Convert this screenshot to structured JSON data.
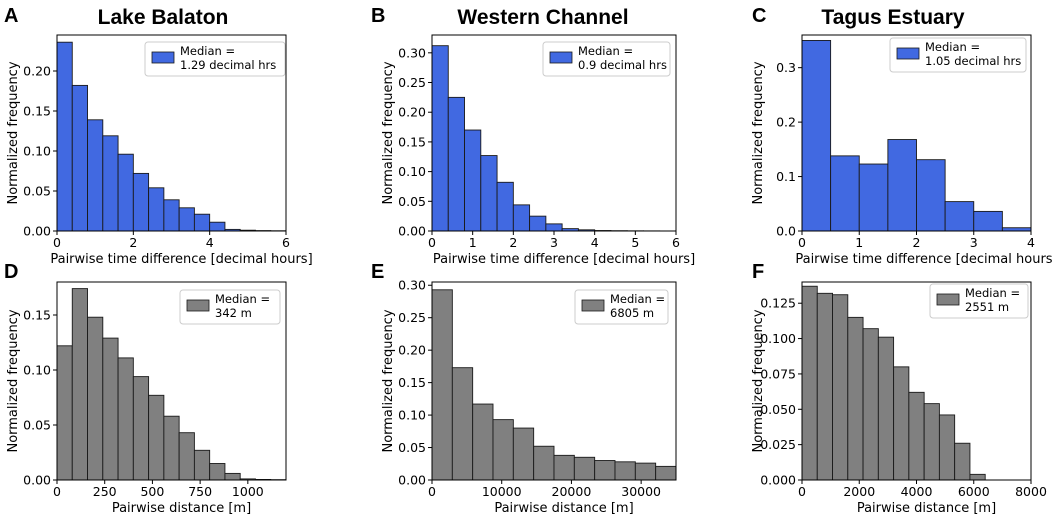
{
  "site_titles": [
    "Lake Balaton",
    "Western Channel",
    "Tagus Estuary"
  ],
  "colors": {
    "time_bar": "#4169e1",
    "distance_bar": "#808080",
    "edge": "#1a1a1a",
    "axis": "#000000"
  },
  "chart_data": [
    {
      "panel": "A",
      "type": "histogram",
      "site": "Lake Balaton",
      "xlabel": "Pairwise time difference [decimal hours]",
      "ylabel": "Normalized frequency",
      "xlim": [
        0,
        6
      ],
      "ylim": [
        0,
        0.245
      ],
      "xticks": [
        0,
        2,
        4,
        6
      ],
      "xtick_labels": [
        "0",
        "2",
        "4",
        "6"
      ],
      "yticks": [
        0,
        0.05,
        0.1,
        0.15,
        0.2
      ],
      "ytick_labels": [
        "0.00",
        "0.05",
        "0.10",
        "0.15",
        "0.20"
      ],
      "bin_edges": [
        0,
        0.4,
        0.8,
        1.2,
        1.6,
        2.0,
        2.4,
        2.8,
        3.2,
        3.6,
        4.0,
        4.4,
        4.8,
        5.2,
        5.6,
        6.0
      ],
      "values": [
        0.236,
        0.182,
        0.139,
        0.119,
        0.096,
        0.072,
        0.054,
        0.039,
        0.029,
        0.021,
        0.011,
        0.002,
        0.001,
        0.0005,
        0.0003
      ],
      "color": "time",
      "legend": {
        "line1": "Median =",
        "line2": "1.29 decimal hrs"
      }
    },
    {
      "panel": "B",
      "type": "histogram",
      "site": "Western Channel",
      "xlabel": "Pairwise time difference [decimal hours]",
      "ylabel": "Normalized frequency",
      "xlim": [
        0,
        6
      ],
      "ylim": [
        0,
        0.33
      ],
      "xticks": [
        0,
        1,
        2,
        3,
        4,
        5,
        6
      ],
      "xtick_labels": [
        "0",
        "1",
        "2",
        "3",
        "4",
        "5",
        "6"
      ],
      "yticks": [
        0,
        0.05,
        0.1,
        0.15,
        0.2,
        0.25,
        0.3
      ],
      "ytick_labels": [
        "0.00",
        "0.05",
        "0.10",
        "0.15",
        "0.20",
        "0.25",
        "0.30"
      ],
      "bin_edges": [
        0,
        0.4,
        0.8,
        1.2,
        1.6,
        2.0,
        2.4,
        2.8,
        3.2,
        3.6,
        4.0,
        4.4,
        4.8,
        5.2,
        5.6,
        6.0
      ],
      "values": [
        0.312,
        0.225,
        0.17,
        0.127,
        0.082,
        0.044,
        0.025,
        0.012,
        0.004,
        0.002,
        0.0008,
        0.0005,
        0.0003,
        0.0002,
        0.0001
      ],
      "color": "time",
      "legend": {
        "line1": "Median =",
        "line2": "0.9 decimal hrs"
      }
    },
    {
      "panel": "C",
      "type": "histogram",
      "site": "Tagus Estuary",
      "xlabel": "Pairwise time difference [decimal hours]",
      "ylabel": "Normalized frequency",
      "xlim": [
        0,
        4
      ],
      "ylim": [
        0,
        0.36
      ],
      "xticks": [
        0,
        1,
        2,
        3,
        4
      ],
      "xtick_labels": [
        "0",
        "1",
        "2",
        "3",
        "4"
      ],
      "yticks": [
        0,
        0.1,
        0.2,
        0.3
      ],
      "ytick_labels": [
        "0.0",
        "0.1",
        "0.2",
        "0.3"
      ],
      "bin_edges": [
        0,
        0.5,
        1.0,
        1.5,
        2.0,
        2.5,
        3.0,
        3.5,
        4.0
      ],
      "values": [
        0.35,
        0.138,
        0.123,
        0.168,
        0.131,
        0.054,
        0.036,
        0.006
      ],
      "color": "time",
      "legend": {
        "line1": "Median =",
        "line2": "1.05 decimal hrs"
      }
    },
    {
      "panel": "D",
      "type": "histogram",
      "xlabel": "Pairwise distance [m]",
      "ylabel": "Normalized frequency",
      "xlim": [
        0,
        1200
      ],
      "ylim": [
        0,
        0.18
      ],
      "xticks": [
        0,
        250,
        500,
        750,
        1000
      ],
      "xtick_labels": [
        "0",
        "250",
        "500",
        "750",
        "1000"
      ],
      "yticks": [
        0,
        0.05,
        0.1,
        0.15
      ],
      "ytick_labels": [
        "0.00",
        "0.05",
        "0.10",
        "0.15"
      ],
      "bin_edges": [
        0,
        80,
        160,
        240,
        320,
        400,
        480,
        560,
        640,
        720,
        800,
        880,
        960,
        1040,
        1120,
        1200
      ],
      "values": [
        0.122,
        0.174,
        0.148,
        0.129,
        0.111,
        0.094,
        0.077,
        0.058,
        0.043,
        0.027,
        0.015,
        0.006,
        0.001,
        0.0005,
        0.0003
      ],
      "color": "distance",
      "legend": {
        "line1": "Median =",
        "line2": "342 m"
      }
    },
    {
      "panel": "E",
      "type": "histogram",
      "xlabel": "Pairwise distance [m]",
      "ylabel": "Normalized frequency",
      "xlim": [
        0,
        35000
      ],
      "ylim": [
        0,
        0.305
      ],
      "xticks": [
        0,
        10000,
        20000,
        30000
      ],
      "xtick_labels": [
        "0",
        "10000",
        "20000",
        "30000"
      ],
      "yticks": [
        0,
        0.05,
        0.1,
        0.15,
        0.2,
        0.25,
        0.3
      ],
      "ytick_labels": [
        "0.00",
        "0.05",
        "0.10",
        "0.15",
        "0.20",
        "0.25",
        "0.30"
      ],
      "bin_edges": [
        0,
        2917,
        5833,
        8750,
        11667,
        14583,
        17500,
        20417,
        23333,
        26250,
        29167,
        32083,
        35000
      ],
      "values": [
        0.293,
        0.173,
        0.117,
        0.093,
        0.08,
        0.052,
        0.038,
        0.035,
        0.03,
        0.028,
        0.026,
        0.021
      ],
      "color": "distance",
      "legend": {
        "line1": "Median =",
        "line2": "6805 m"
      }
    },
    {
      "panel": "F",
      "type": "histogram",
      "xlabel": "Pairwise distance [m]",
      "ylabel": "Normalized frequency",
      "xlim": [
        0,
        8000
      ],
      "ylim": [
        0,
        0.14
      ],
      "xticks": [
        0,
        2000,
        4000,
        6000,
        8000
      ],
      "xtick_labels": [
        "0",
        "2000",
        "4000",
        "6000",
        "8000"
      ],
      "yticks": [
        0,
        0.025,
        0.05,
        0.075,
        0.1,
        0.125
      ],
      "ytick_labels": [
        "0.000",
        "0.025",
        "0.050",
        "0.075",
        "0.100",
        "0.125"
      ],
      "bin_edges": [
        0,
        533,
        1067,
        1600,
        2133,
        2667,
        3200,
        3733,
        4267,
        4800,
        5333,
        5867,
        6400,
        6933,
        7467,
        8000
      ],
      "values": [
        0.137,
        0.132,
        0.131,
        0.115,
        0.107,
        0.101,
        0.08,
        0.062,
        0.054,
        0.046,
        0.026,
        0.004,
        0.0,
        0.0,
        0.0
      ],
      "color": "distance",
      "legend": {
        "line1": "Median =",
        "line2": "2551 m"
      }
    }
  ]
}
